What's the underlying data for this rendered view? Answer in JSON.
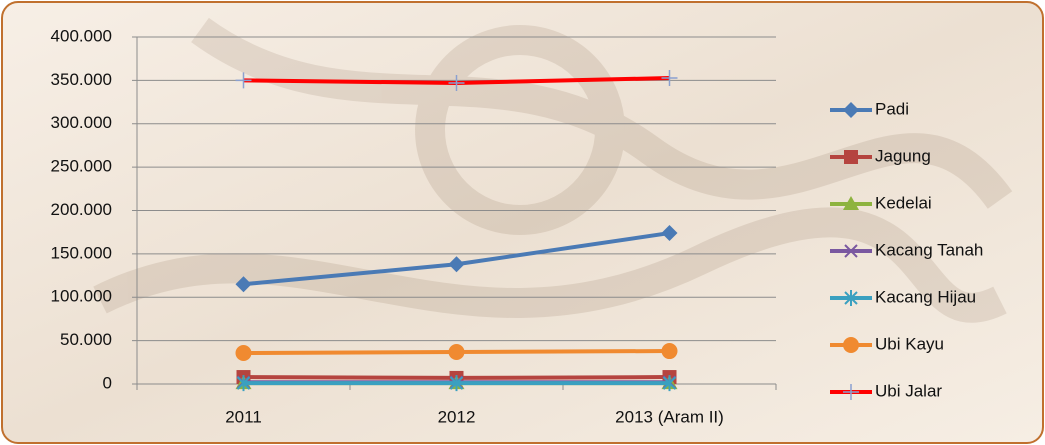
{
  "chart_data": {
    "type": "line",
    "categories": [
      "2011",
      "2012",
      "2013 (Aram II)"
    ],
    "series": [
      {
        "name": "Padi",
        "color": "#4a7ab5",
        "marker": "diamond",
        "values": [
          115000,
          138000,
          174000
        ]
      },
      {
        "name": "Jagung",
        "color": "#b5443f",
        "marker": "square",
        "values": [
          8000,
          7000,
          8000
        ]
      },
      {
        "name": "Kedelai",
        "color": "#8db33f",
        "marker": "triangle",
        "values": [
          1000,
          1000,
          1000
        ]
      },
      {
        "name": "Kacang Tanah",
        "color": "#7a58a0",
        "marker": "x",
        "values": [
          2000,
          2000,
          2000
        ]
      },
      {
        "name": "Kacang Hijau",
        "color": "#3aa0c0",
        "marker": "asterisk",
        "values": [
          1000,
          1000,
          1000
        ]
      },
      {
        "name": "Ubi Kayu",
        "color": "#f08a30",
        "marker": "circle",
        "values": [
          35700,
          36900,
          38000
        ]
      },
      {
        "name": "Ubi Jalar",
        "color": "#ff0000",
        "marker": "plus",
        "values": [
          350000,
          347000,
          352700
        ]
      }
    ],
    "ylim": [
      0,
      400000
    ],
    "yticks": [
      0,
      {
        "value": 50000,
        "label": "50.000"
      },
      {
        "value": 100000,
        "label": "100.000"
      },
      {
        "value": 150000,
        "label": "150.000"
      },
      {
        "value": 200000,
        "label": "200.000"
      },
      {
        "value": 250000,
        "label": "250.000"
      },
      {
        "value": 300000,
        "label": "300.000"
      },
      {
        "value": 350000,
        "label": "350.000"
      },
      {
        "value": 400000,
        "label": "400.000"
      }
    ],
    "grid": true,
    "legend": "right"
  }
}
